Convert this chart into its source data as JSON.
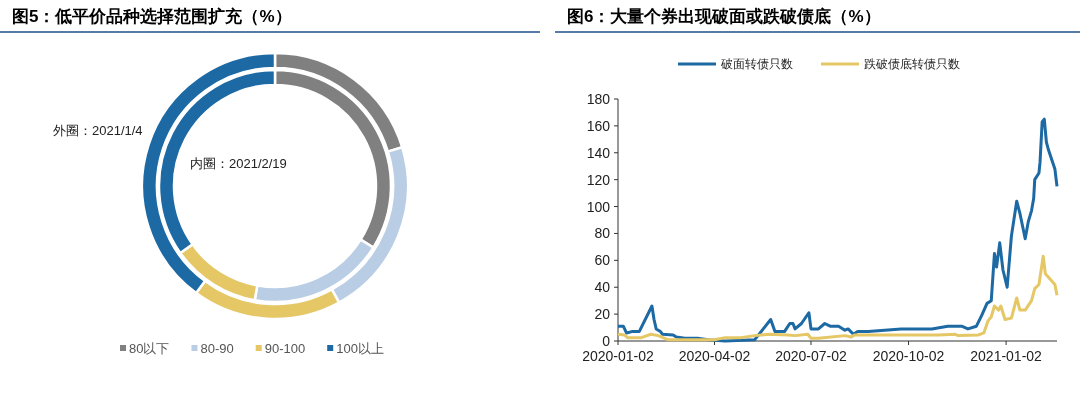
{
  "chart_data": [
    {
      "type": "donut",
      "title": "图5：低平价品种选择范围扩充（%）",
      "categories": [
        "80以下",
        "80-90",
        "90-100",
        "100以上"
      ],
      "colors": [
        "#808080",
        "#b9cde5",
        "#e5c765",
        "#1c69a4"
      ],
      "series": [
        {
          "values": [
            20.3,
            21.7,
            18.1,
            39.9
          ]
        },
        {
          "values": [
            33.9,
            18.9,
            12.4,
            34.8
          ]
        }
      ],
      "annotations": [
        "外圈：2021/1/4",
        "内圈：2021/2/19"
      ],
      "legend": "bottom"
    },
    {
      "type": "line",
      "title": "图6：大量个券出现破面或跌破债底（%）",
      "legend": "top",
      "xlim": [
        "2020-01-02",
        "2021-02-19"
      ],
      "xticks": [
        "2020-01-02",
        "2020-04-02",
        "2020-07-02",
        "2020-10-02",
        "2021-01-02"
      ],
      "ylim": [
        0,
        180
      ],
      "yticks": [
        0,
        20,
        40,
        60,
        80,
        100,
        120,
        140,
        160,
        180
      ],
      "series": [
        {
          "name": "破面转债只数",
          "color": "#1c69a4",
          "x": [
            "2020-01-02",
            "2020-01-07",
            "2020-01-10",
            "2020-01-15",
            "2020-01-22",
            "2020-02-03",
            "2020-02-05",
            "2020-02-07",
            "2020-02-11",
            "2020-02-13",
            "2020-02-23",
            "2020-02-26",
            "2020-03-05",
            "2020-03-17",
            "2020-03-27",
            "2020-04-12",
            "2020-05-10",
            "2020-05-18",
            "2020-05-25",
            "2020-05-29",
            "2020-06-07",
            "2020-06-12",
            "2020-06-15",
            "2020-06-17",
            "2020-06-23",
            "2020-06-30",
            "2020-07-02",
            "2020-07-09",
            "2020-07-15",
            "2020-07-20",
            "2020-07-28",
            "2020-08-03",
            "2020-08-06",
            "2020-08-11",
            "2020-08-15",
            "2020-08-25",
            "2020-09-25",
            "2020-10-24",
            "2020-11-08",
            "2020-11-21",
            "2020-11-27",
            "2020-12-05",
            "2020-12-10",
            "2020-12-15",
            "2020-12-19",
            "2020-12-22",
            "2020-12-24",
            "2020-12-27",
            "2020-12-30",
            "2021-01-03",
            "2021-01-07",
            "2021-01-12",
            "2021-01-15",
            "2021-01-20",
            "2021-01-23",
            "2021-01-26",
            "2021-01-28",
            "2021-01-29",
            "2021-02-02",
            "2021-02-03",
            "2021-02-05",
            "2021-02-07",
            "2021-02-09",
            "2021-02-11",
            "2021-02-17",
            "2021-02-19"
          ],
          "values": [
            11,
            11,
            6,
            7,
            7,
            26,
            16,
            9,
            7,
            5,
            4.5,
            3,
            2,
            2,
            1,
            0,
            1,
            9,
            16,
            7,
            7,
            13,
            13,
            9,
            13,
            21,
            9,
            9,
            13,
            11,
            11,
            8,
            9,
            5,
            7,
            7,
            9,
            9,
            11,
            11,
            9,
            11,
            19,
            28,
            30,
            65,
            55,
            73,
            53,
            40,
            78,
            104,
            95,
            76,
            89,
            97,
            106,
            120,
            125,
            133,
            163,
            165,
            148,
            142,
            128,
            115
          ]
        },
        {
          "name": "跌破债底转债只数",
          "color": "#e5c765",
          "x": [
            "2020-01-02",
            "2020-01-08",
            "2020-01-11",
            "2020-01-24",
            "2020-02-02",
            "2020-02-09",
            "2020-02-15",
            "2020-02-18",
            "2020-04-02",
            "2020-04-12",
            "2020-04-27",
            "2020-05-10",
            "2020-05-23",
            "2020-06-10",
            "2020-06-17",
            "2020-06-29",
            "2020-07-02",
            "2020-07-09",
            "2020-08-03",
            "2020-08-09",
            "2020-08-12",
            "2020-10-30",
            "2020-11-15",
            "2020-11-18",
            "2020-12-07",
            "2020-12-12",
            "2020-12-16",
            "2020-12-19",
            "2020-12-22",
            "2020-12-26",
            "2020-12-28",
            "2021-01-01",
            "2021-01-07",
            "2021-01-12",
            "2021-01-15",
            "2021-01-20",
            "2021-01-26",
            "2021-01-29",
            "2021-02-02",
            "2021-02-06",
            "2021-02-08",
            "2021-02-17",
            "2021-02-19"
          ],
          "values": [
            5,
            4.5,
            2.5,
            2.5,
            5,
            4,
            2,
            1,
            1,
            2.5,
            2.5,
            4,
            5,
            4.5,
            4,
            5,
            2,
            2,
            4,
            3,
            4.5,
            4.5,
            5,
            4,
            4.5,
            6,
            15,
            18,
            26,
            23,
            26,
            16,
            17,
            32,
            23,
            23,
            30,
            39,
            42,
            63,
            50,
            42,
            34
          ]
        }
      ]
    }
  ]
}
